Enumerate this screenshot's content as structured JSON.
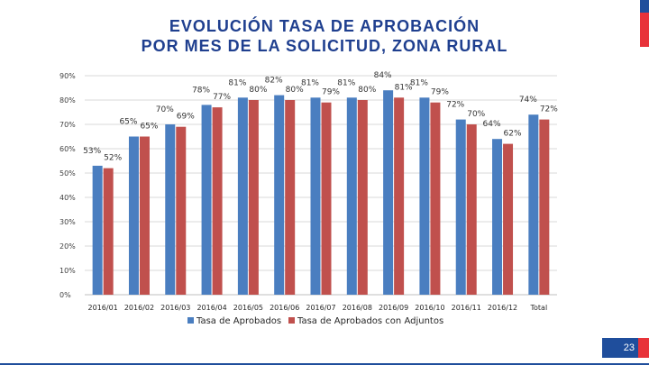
{
  "title_lines": [
    "EVOLUCIÓN TASA DE APROBACIÓN",
    "POR MES DE LA SOLICITUD, ZONA RURAL"
  ],
  "page_number": "23",
  "colors": {
    "series_1": "#4a7ec0",
    "series_2": "#c0504d",
    "title": "#1f3f8f",
    "brand_blue": "#1f4e9c",
    "brand_red": "#e8333a"
  },
  "chart_data": {
    "type": "bar",
    "title": "EVOLUCIÓN TASA DE APROBACIÓN POR MES DE LA SOLICITUD, ZONA RURAL",
    "xlabel": "",
    "ylabel": "",
    "ylim": [
      0,
      90
    ],
    "yticks": [
      0,
      10,
      20,
      30,
      40,
      50,
      60,
      70,
      80,
      90
    ],
    "ytick_labels": [
      "0%",
      "10%",
      "20%",
      "30%",
      "40%",
      "50%",
      "60%",
      "70%",
      "80%",
      "90%"
    ],
    "grid": true,
    "legend_position": "bottom",
    "categories": [
      "2016/01",
      "2016/02",
      "2016/03",
      "2016/04",
      "2016/05",
      "2016/06",
      "2016/07",
      "2016/08",
      "2016/09",
      "2016/10",
      "2016/11",
      "2016/12",
      "Total"
    ],
    "series": [
      {
        "name": "Tasa de Aprobados",
        "values": [
          53,
          65,
          70,
          78,
          81,
          82,
          81,
          81,
          84,
          81,
          72,
          64,
          74
        ],
        "labels": [
          "53%",
          "65%",
          "70%",
          "78%",
          "81%",
          "82%",
          "81%",
          "81%",
          "84%",
          "81%",
          "72%",
          "64%",
          "74%"
        ]
      },
      {
        "name": "Tasa de Aprobados con Adjuntos",
        "values": [
          52,
          65,
          69,
          77,
          80,
          80,
          79,
          80,
          81,
          79,
          70,
          62,
          72
        ],
        "labels": [
          "52%",
          "65%",
          "69%",
          "77%",
          "80%",
          "80%",
          "79%",
          "80%",
          "81%",
          "79%",
          "70%",
          "62%",
          "72%"
        ]
      }
    ]
  }
}
